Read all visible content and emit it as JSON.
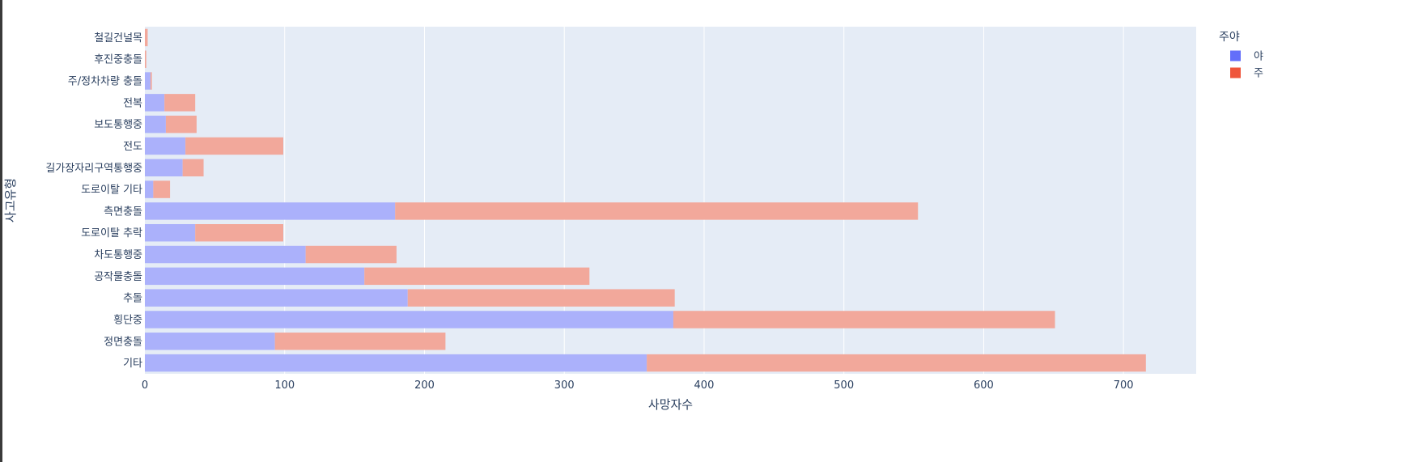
{
  "chart_data": {
    "type": "bar",
    "orientation": "horizontal",
    "barmode": "stack",
    "xlabel": "사망자수",
    "ylabel": "사고유형",
    "xlim": [
      0,
      752
    ],
    "xticks": [
      0,
      100,
      200,
      300,
      400,
      500,
      600,
      700
    ],
    "grid": true,
    "legend_title": "주야",
    "legend_position": "top-right",
    "categories": [
      "기타",
      "정면충돌",
      "횡단중",
      "추돌",
      "공작물충돌",
      "차도통행중",
      "도로이탈 추락",
      "측면충돌",
      "도로이탈 기타",
      "길가장자리구역통행중",
      "전도",
      "보도통행중",
      "전복",
      "주/정차차량 충돌",
      "후진중충돌",
      "철길건널목"
    ],
    "series": [
      {
        "name": "야",
        "color": "#636efa",
        "values": [
          359,
          93,
          378,
          188,
          157,
          115,
          36,
          179,
          6,
          27,
          29,
          15,
          14,
          4,
          0,
          0
        ]
      },
      {
        "name": "주",
        "color": "#ef553b",
        "values": [
          357,
          122,
          273,
          191,
          161,
          65,
          63,
          374,
          12,
          15,
          70,
          22,
          22,
          1,
          1,
          2
        ]
      }
    ]
  }
}
